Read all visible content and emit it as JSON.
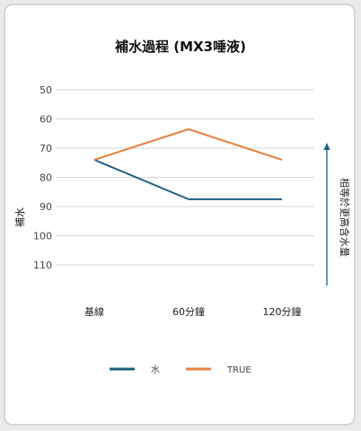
{
  "chart_data": {
    "type": "line",
    "title": "補水過程 (MX3唾液)",
    "ylabel": "補水",
    "categories": [
      "基線",
      "60分鐘",
      "120分鐘"
    ],
    "y_ticks": [
      "50",
      "60",
      "70",
      "80",
      "90",
      "100",
      "110"
    ],
    "ylim": [
      50,
      110
    ],
    "y_inverted": true,
    "annotation": "相等於更高含水量",
    "grid": true,
    "legend_position": "bottom",
    "series": [
      {
        "name": "水",
        "values": [
          74,
          87.5,
          87.5
        ],
        "color": "#1c5f82"
      },
      {
        "name": "TRUE",
        "values": [
          74,
          63.5,
          74
        ],
        "color": "#e5823f"
      }
    ]
  }
}
